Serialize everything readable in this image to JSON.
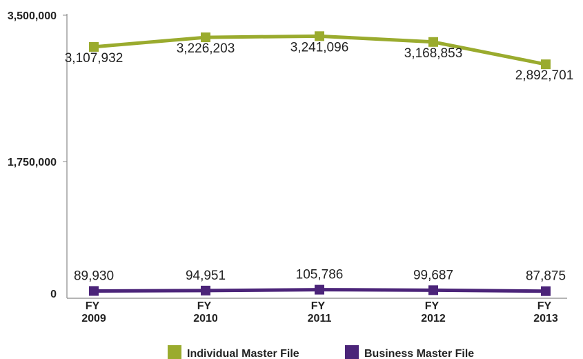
{
  "chart_data": {
    "type": "line",
    "categories": [
      [
        "FY",
        "2009"
      ],
      [
        "FY",
        "2010"
      ],
      [
        "FY",
        "2011"
      ],
      [
        "FY",
        "2012"
      ],
      [
        "FY",
        "2013"
      ]
    ],
    "y_ticks": [
      "3,500,000",
      "1,750,000",
      "0"
    ],
    "ylim": [
      0,
      3500000
    ],
    "grid": false,
    "legend_position": "bottom",
    "series": [
      {
        "name": "Individual Master File",
        "color": "#9aab2e",
        "values": [
          3107932,
          3226203,
          3241096,
          3168853,
          2892701
        ],
        "labels": [
          "3,107,932",
          "3,226,203",
          "3,241,096",
          "3,168,853",
          "2,892,701"
        ]
      },
      {
        "name": "Business Master File",
        "color": "#4b2479",
        "values": [
          89930,
          94951,
          105786,
          99687,
          87875
        ],
        "labels": [
          "89,930",
          "94,951",
          "105,786",
          "99,687",
          "87,875"
        ]
      }
    ]
  }
}
